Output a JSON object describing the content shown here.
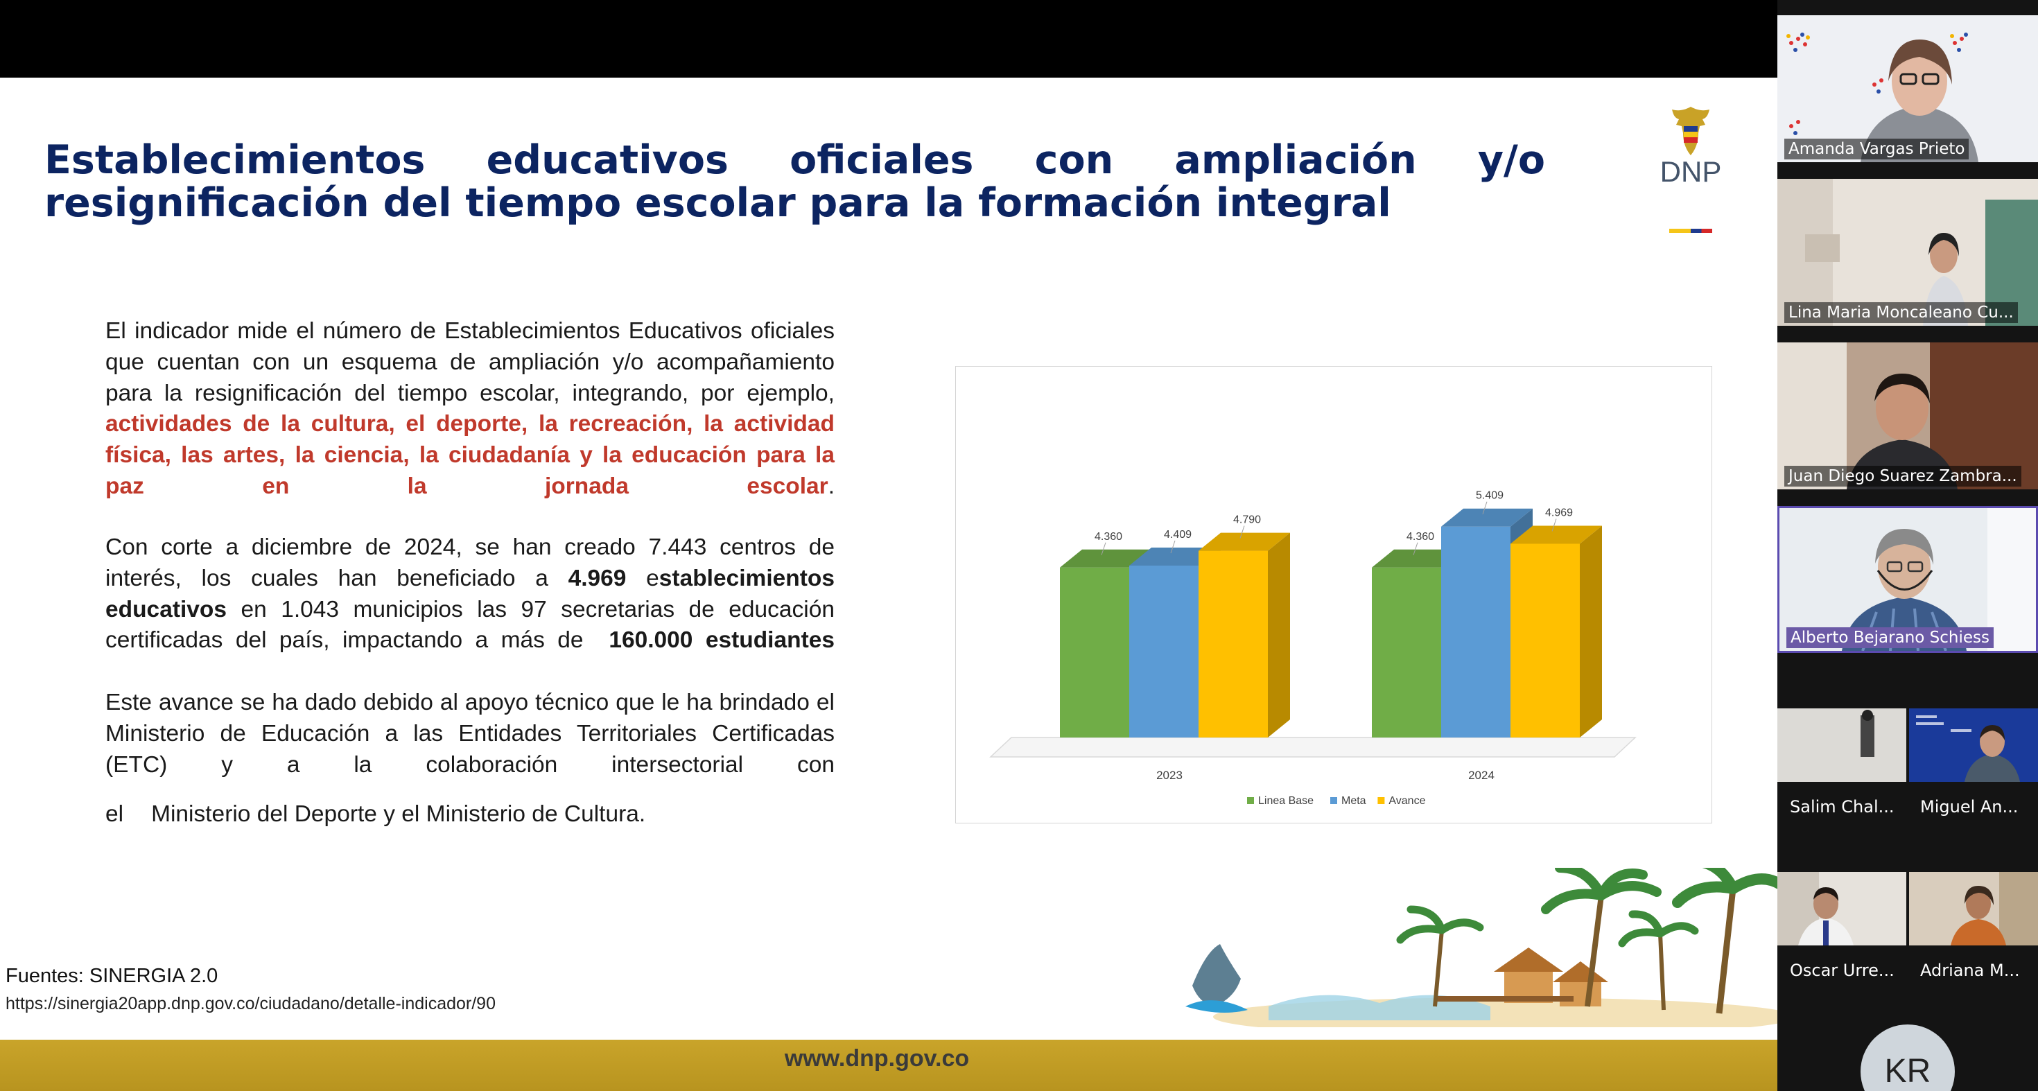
{
  "slide": {
    "title": "Establecimientos educativos oficiales con ampliación y/o resignificación del tiempo escolar para la formación integral",
    "logo_text": "DNP",
    "paragraph1": {
      "lead": "El indicador mide el número de Establecimientos Educativos oficiales que cuentan con un esquema de ampliación y/o acompañamiento para la resignificación del tiempo escolar, integrando, por ejemplo,",
      "highlight": "actividades de la cultura, el deporte, la recreación, la actividad física, las artes, la ciencia, la ciudadanía y la educación para la paz en la jornada escolar",
      "tail": "."
    },
    "paragraph2": {
      "a": "Con corte a diciembre de 2024, se han creado 7.443 centros de interés, los cuales han beneficiado a",
      "b": "4.969",
      "c": "e",
      "d": "stablecimientos educativos",
      "e": "en 1.043 municipios las 97 secretarias de educación certificadas del país, impactando a más de",
      "f": "160.000 estudiantes"
    },
    "paragraph3": "Este avance se ha dado debido al apoyo técnico que le ha brindado el Ministerio de Educación a las Entidades Territoriales Certificadas (ETC) y a la colaboración intersectorial con",
    "paragraph4": {
      "a": "el",
      "b": "Ministerio del Deporte y el Ministerio de Cultura."
    },
    "sources_label": "Fuentes: SINERGIA 2.0",
    "sources_url": "https://sinergia20app.dnp.gov.co/ciudadano/detalle-indicador/90",
    "footer_url": "www.dnp.gov.co"
  },
  "chart_data": {
    "type": "bar",
    "categories": [
      "2023",
      "2024"
    ],
    "series": [
      {
        "name": "Linea Base",
        "values": [
          4360,
          4360
        ],
        "labels": [
          "4.360",
          "4.360"
        ],
        "color": "#70ad47"
      },
      {
        "name": "Meta",
        "values": [
          4409,
          5409
        ],
        "labels": [
          "4.409",
          "5.409"
        ],
        "color": "#5b9bd5"
      },
      {
        "name": "Avance",
        "values": [
          4790,
          4969
        ],
        "labels": [
          "4.790",
          "4.969"
        ],
        "color": "#ffc000"
      }
    ],
    "ylim": [
      0,
      5600
    ],
    "grid": false,
    "legend": "bottom",
    "style": "3d-clustered"
  },
  "participants": [
    {
      "name": "Amanda Vargas Prieto",
      "active": false
    },
    {
      "name": "Lina Maria Moncaleano Cu...",
      "active": false
    },
    {
      "name": "Juan Diego Suarez Zambra...",
      "active": false
    },
    {
      "name": "Alberto Bejarano Schiess",
      "active": true
    },
    {
      "name": "Salim Chal...",
      "active": false
    },
    {
      "name": "Miguel An...",
      "active": false
    },
    {
      "name": "Oscar Urre...",
      "active": false
    },
    {
      "name": "Adriana M...",
      "active": false
    },
    {
      "name": "KR",
      "active": false
    }
  ]
}
